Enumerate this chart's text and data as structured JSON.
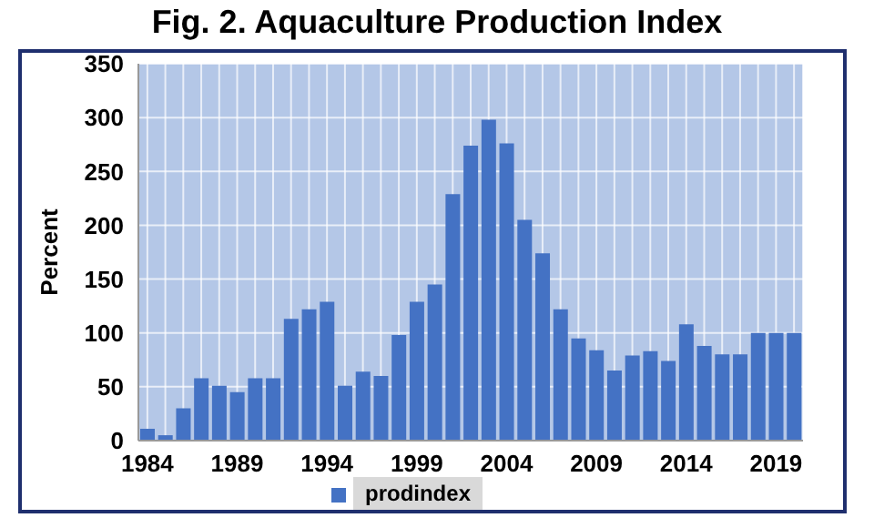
{
  "chart_data": {
    "type": "bar",
    "title": "Fig. 2. Aquaculture Production Index",
    "ylabel": "Percent",
    "categories": [
      "1984",
      null,
      null,
      null,
      null,
      "1989",
      null,
      null,
      null,
      null,
      "1994",
      null,
      null,
      null,
      null,
      "1999",
      null,
      null,
      null,
      null,
      "2004",
      null,
      null,
      null,
      null,
      "2009",
      null,
      null,
      null,
      null,
      "2014",
      null,
      null,
      null,
      null,
      "2019",
      null
    ],
    "series": [
      {
        "name": "prodindex",
        "color": "#4472c4",
        "values": [
          11,
          5,
          30,
          58,
          51,
          45,
          58,
          58,
          113,
          122,
          129,
          51,
          64,
          60,
          98,
          129,
          145,
          229,
          274,
          298,
          276,
          205,
          174,
          122,
          95,
          84,
          65,
          79,
          83,
          74,
          108,
          88,
          80,
          80,
          100,
          100,
          100
        ]
      }
    ],
    "ylim": [
      0,
      350
    ],
    "yticks": [
      0,
      50,
      100,
      150,
      200,
      250,
      300,
      350
    ],
    "grid": true,
    "legend": "bottom"
  }
}
